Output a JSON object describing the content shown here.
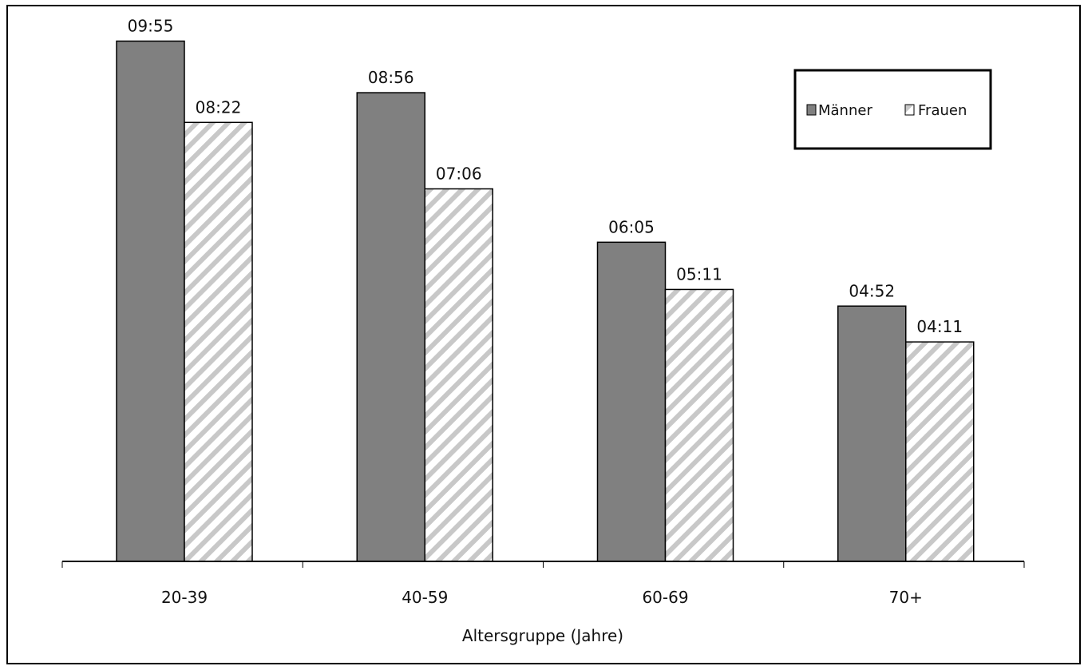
{
  "chart_data": {
    "type": "bar",
    "categories": [
      "20-39",
      "40-59",
      "60-69",
      "70+"
    ],
    "series": [
      {
        "name": "Männer",
        "values": [
          9.9167,
          8.9333,
          6.0833,
          4.8667
        ],
        "labels": [
          "09:55",
          "08:56",
          "06:05",
          "04:52"
        ],
        "color": "#808080",
        "pattern": "solid"
      },
      {
        "name": "Frauen",
        "values": [
          8.3667,
          7.1,
          5.1833,
          4.1833
        ],
        "labels": [
          "08:22",
          "07:06",
          "05:11",
          "04:11"
        ],
        "color": "#ffffff",
        "pattern": "diagonal-hatch",
        "hatch_color": "#c8c8c8"
      }
    ],
    "title": "",
    "xlabel": "Altersgruppe (Jahre)",
    "ylabel": "",
    "ylim": [
      0,
      10.7
    ],
    "grid": false,
    "legend_position": "top-right"
  }
}
